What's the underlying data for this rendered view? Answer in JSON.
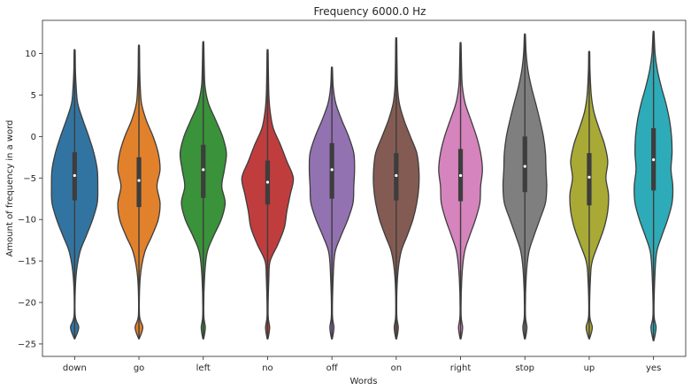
{
  "chart_data": {
    "type": "violin",
    "title": "Frequency 6000.0 Hz",
    "xlabel": "Words",
    "ylabel": "Amount of frequency in a word",
    "categories": [
      "down",
      "go",
      "left",
      "no",
      "off",
      "on",
      "right",
      "stop",
      "up",
      "yes"
    ],
    "ylim": [
      -26.5,
      14
    ],
    "yticks": [
      10,
      5,
      0,
      -5,
      -10,
      -15,
      -20,
      -25
    ],
    "ytick_labels": [
      "10",
      "5",
      "0",
      "−5",
      "−10",
      "−15",
      "−20",
      "−25"
    ],
    "grid": false,
    "colors": [
      "#3274a1",
      "#e1812c",
      "#3a923a",
      "#c03d3e",
      "#9372b2",
      "#845b53",
      "#d684bd",
      "#7f7f7f",
      "#a9aa35",
      "#2eabb8"
    ],
    "series": [
      {
        "category": "down",
        "min": -24.3,
        "max": 10.3,
        "q1": -7.7,
        "median": -4.7,
        "q3": -1.9,
        "profile": [
          [
            -24.3,
            0.02
          ],
          [
            -23,
            0.16
          ],
          [
            -21.5,
            0.02
          ],
          [
            -17,
            0.05
          ],
          [
            -14,
            0.2
          ],
          [
            -12,
            0.45
          ],
          [
            -10,
            0.7
          ],
          [
            -8,
            0.88
          ],
          [
            -6,
            0.9
          ],
          [
            -4,
            0.88
          ],
          [
            -2,
            0.75
          ],
          [
            0,
            0.55
          ],
          [
            2,
            0.32
          ],
          [
            4,
            0.12
          ],
          [
            6,
            0.06
          ],
          [
            8,
            0.03
          ],
          [
            10.3,
            0.02
          ]
        ]
      },
      {
        "category": "go",
        "min": -24.3,
        "max": 10.8,
        "q1": -8.5,
        "median": -5.3,
        "q3": -2.5,
        "profile": [
          [
            -24.3,
            0.02
          ],
          [
            -23,
            0.15
          ],
          [
            -21.5,
            0.02
          ],
          [
            -17,
            0.05
          ],
          [
            -14,
            0.22
          ],
          [
            -12,
            0.5
          ],
          [
            -10,
            0.75
          ],
          [
            -8,
            0.82
          ],
          [
            -6,
            0.7
          ],
          [
            -4,
            0.82
          ],
          [
            -2,
            0.75
          ],
          [
            0,
            0.55
          ],
          [
            2,
            0.28
          ],
          [
            4,
            0.1
          ],
          [
            6,
            0.05
          ],
          [
            8,
            0.03
          ],
          [
            10.8,
            0.02
          ]
        ]
      },
      {
        "category": "left",
        "min": -24.3,
        "max": 11.2,
        "q1": -7.4,
        "median": -4.0,
        "q3": -1.0,
        "profile": [
          [
            -24.3,
            0.02
          ],
          [
            -23,
            0.08
          ],
          [
            -21.5,
            0.02
          ],
          [
            -17,
            0.05
          ],
          [
            -14,
            0.15
          ],
          [
            -12,
            0.4
          ],
          [
            -10,
            0.7
          ],
          [
            -8,
            0.85
          ],
          [
            -6,
            0.72
          ],
          [
            -4,
            0.82
          ],
          [
            -2,
            0.9
          ],
          [
            0,
            0.75
          ],
          [
            2,
            0.48
          ],
          [
            4,
            0.2
          ],
          [
            6,
            0.07
          ],
          [
            8,
            0.04
          ],
          [
            11.2,
            0.02
          ]
        ]
      },
      {
        "category": "no",
        "min": -24.3,
        "max": 10.3,
        "q1": -8.2,
        "median": -5.5,
        "q3": -2.9,
        "profile": [
          [
            -24.3,
            0.02
          ],
          [
            -23,
            0.08
          ],
          [
            -21.5,
            0.02
          ],
          [
            -17,
            0.05
          ],
          [
            -15,
            0.1
          ],
          [
            -13,
            0.4
          ],
          [
            -11,
            0.65
          ],
          [
            -9,
            0.75
          ],
          [
            -7,
            0.88
          ],
          [
            -5,
            1.0
          ],
          [
            -3,
            0.75
          ],
          [
            -1,
            0.5
          ],
          [
            1,
            0.22
          ],
          [
            3,
            0.1
          ],
          [
            5,
            0.05
          ],
          [
            8,
            0.03
          ],
          [
            10.3,
            0.02
          ]
        ]
      },
      {
        "category": "off",
        "min": -24.3,
        "max": 8.2,
        "q1": -7.5,
        "median": -4.0,
        "q3": -0.8,
        "profile": [
          [
            -24.3,
            0.02
          ],
          [
            -23,
            0.08
          ],
          [
            -21.5,
            0.02
          ],
          [
            -17,
            0.05
          ],
          [
            -14,
            0.12
          ],
          [
            -12,
            0.35
          ],
          [
            -10,
            0.62
          ],
          [
            -8,
            0.82
          ],
          [
            -6,
            0.85
          ],
          [
            -4,
            0.88
          ],
          [
            -2,
            0.85
          ],
          [
            0,
            0.65
          ],
          [
            2,
            0.38
          ],
          [
            4,
            0.15
          ],
          [
            6,
            0.05
          ],
          [
            8.2,
            0.02
          ]
        ]
      },
      {
        "category": "on",
        "min": -24.3,
        "max": 11.7,
        "q1": -7.7,
        "median": -4.7,
        "q3": -2.0,
        "profile": [
          [
            -24.3,
            0.02
          ],
          [
            -23,
            0.08
          ],
          [
            -21.5,
            0.02
          ],
          [
            -17,
            0.05
          ],
          [
            -14,
            0.18
          ],
          [
            -12,
            0.42
          ],
          [
            -10,
            0.65
          ],
          [
            -8,
            0.8
          ],
          [
            -6,
            0.88
          ],
          [
            -4,
            0.88
          ],
          [
            -2,
            0.8
          ],
          [
            0,
            0.55
          ],
          [
            2,
            0.3
          ],
          [
            4,
            0.12
          ],
          [
            6,
            0.05
          ],
          [
            9,
            0.03
          ],
          [
            11.7,
            0.02
          ]
        ]
      },
      {
        "category": "right",
        "min": -24.3,
        "max": 11.1,
        "q1": -7.8,
        "median": -4.7,
        "q3": -1.5,
        "profile": [
          [
            -24.3,
            0.02
          ],
          [
            -23,
            0.08
          ],
          [
            -21.5,
            0.02
          ],
          [
            -17,
            0.05
          ],
          [
            -14,
            0.15
          ],
          [
            -12,
            0.35
          ],
          [
            -10,
            0.58
          ],
          [
            -8,
            0.75
          ],
          [
            -6,
            0.78
          ],
          [
            -4,
            0.85
          ],
          [
            -2,
            0.78
          ],
          [
            0,
            0.62
          ],
          [
            2,
            0.4
          ],
          [
            4,
            0.18
          ],
          [
            6,
            0.07
          ],
          [
            8,
            0.04
          ],
          [
            11.1,
            0.02
          ]
        ]
      },
      {
        "category": "stop",
        "min": -24.3,
        "max": 12.2,
        "q1": -6.7,
        "median": -3.6,
        "q3": 0.0,
        "profile": [
          [
            -24.3,
            0.02
          ],
          [
            -23,
            0.08
          ],
          [
            -21.5,
            0.02
          ],
          [
            -17,
            0.05
          ],
          [
            -14,
            0.15
          ],
          [
            -12,
            0.35
          ],
          [
            -10,
            0.58
          ],
          [
            -8,
            0.8
          ],
          [
            -6,
            0.85
          ],
          [
            -4,
            0.82
          ],
          [
            -2,
            0.8
          ],
          [
            0,
            0.72
          ],
          [
            2,
            0.58
          ],
          [
            4,
            0.42
          ],
          [
            6,
            0.25
          ],
          [
            8,
            0.12
          ],
          [
            10,
            0.05
          ],
          [
            12.2,
            0.02
          ]
        ]
      },
      {
        "category": "up",
        "min": -24.3,
        "max": 10.1,
        "q1": -8.3,
        "median": -4.9,
        "q3": -2.0,
        "profile": [
          [
            -24.3,
            0.02
          ],
          [
            -23,
            0.12
          ],
          [
            -21.5,
            0.02
          ],
          [
            -17,
            0.05
          ],
          [
            -15,
            0.12
          ],
          [
            -13,
            0.35
          ],
          [
            -11,
            0.58
          ],
          [
            -9,
            0.72
          ],
          [
            -7,
            0.75
          ],
          [
            -5,
            0.65
          ],
          [
            -3,
            0.72
          ],
          [
            -1,
            0.6
          ],
          [
            1,
            0.38
          ],
          [
            3,
            0.18
          ],
          [
            5,
            0.08
          ],
          [
            8,
            0.03
          ],
          [
            10.1,
            0.02
          ]
        ]
      },
      {
        "category": "yes",
        "min": -24.5,
        "max": 12.5,
        "q1": -6.5,
        "median": -2.8,
        "q3": 1.0,
        "profile": [
          [
            -24.5,
            0.02
          ],
          [
            -23,
            0.1
          ],
          [
            -21.5,
            0.02
          ],
          [
            -17,
            0.05
          ],
          [
            -14,
            0.12
          ],
          [
            -12,
            0.32
          ],
          [
            -10,
            0.55
          ],
          [
            -8,
            0.72
          ],
          [
            -6,
            0.75
          ],
          [
            -4,
            0.68
          ],
          [
            -2,
            0.72
          ],
          [
            0,
            0.7
          ],
          [
            2,
            0.62
          ],
          [
            4,
            0.48
          ],
          [
            6,
            0.3
          ],
          [
            8,
            0.15
          ],
          [
            10,
            0.06
          ],
          [
            12.5,
            0.02
          ]
        ]
      }
    ]
  }
}
